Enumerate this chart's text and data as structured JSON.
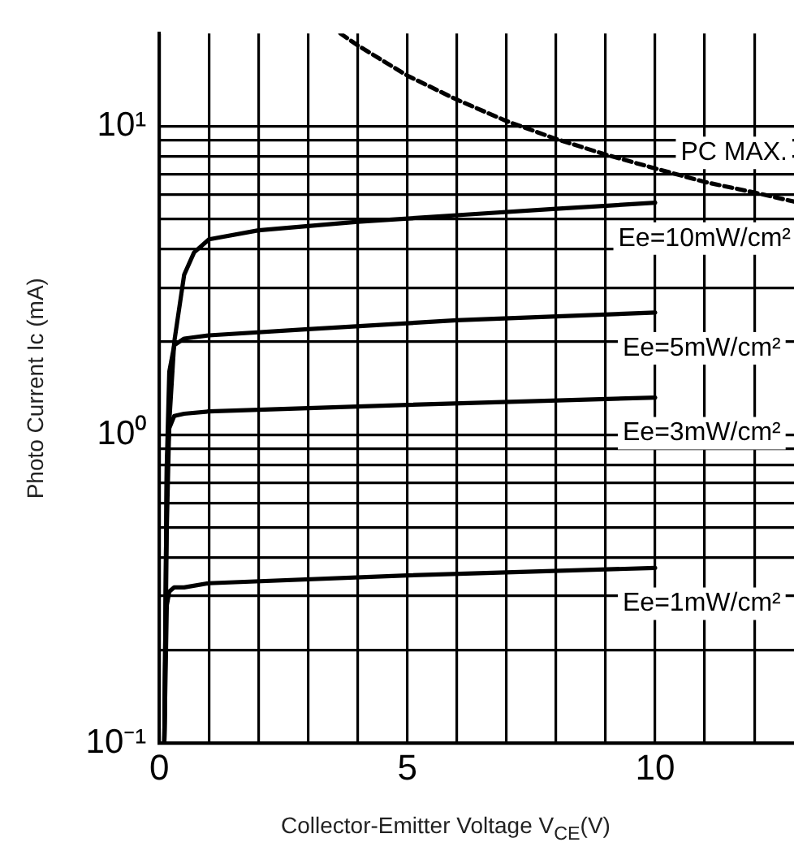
{
  "chart_data": {
    "type": "line",
    "xlabel": "Collector-Emitter Voltage V$_{CE}$(V)",
    "ylabel": "Photo Current Ic (mA)",
    "log": "y",
    "grid": true,
    "legend": false,
    "marker": "none",
    "xlim": [
      0,
      12.8
    ],
    "xticks": [
      0,
      {
        "value": 1,
        "label": null
      },
      {
        "value": 2,
        "label": null
      },
      {
        "value": 3,
        "label": null
      },
      {
        "value": 4,
        "label": null
      },
      5,
      {
        "value": 6,
        "label": null
      },
      {
        "value": 7,
        "label": null
      },
      {
        "value": 8,
        "label": null
      },
      {
        "value": 9,
        "label": null
      },
      10,
      {
        "value": 11,
        "label": null
      },
      {
        "value": 12,
        "label": null
      }
    ],
    "ylim": [
      0.1,
      20
    ],
    "yticks": [
      {
        "value": 0.1,
        "label": "10⁻¹"
      },
      {
        "value": 0.2,
        "label": null
      },
      {
        "value": 0.3,
        "label": null
      },
      {
        "value": 0.4,
        "label": null
      },
      {
        "value": 0.5,
        "label": null
      },
      {
        "value": 0.6,
        "label": null
      },
      {
        "value": 0.7,
        "label": null
      },
      {
        "value": 0.8,
        "label": null
      },
      {
        "value": 0.9,
        "label": null
      },
      {
        "value": 1,
        "label": "10⁰"
      },
      {
        "value": 2,
        "label": null
      },
      {
        "value": 3,
        "label": null
      },
      {
        "value": 4,
        "label": null
      },
      {
        "value": 5,
        "label": null
      },
      {
        "value": 6,
        "label": null
      },
      {
        "value": 7,
        "label": null
      },
      {
        "value": 8,
        "label": null
      },
      {
        "value": 9,
        "label": null
      },
      {
        "value": 10,
        "label": "10¹"
      }
    ],
    "series": [
      {
        "name": "PC MAX.",
        "color": "#000000",
        "line_style": "dashed",
        "x": [
          3.65,
          4,
          5,
          6,
          7,
          8,
          9,
          10,
          11,
          12,
          12.8
        ],
        "values": [
          20,
          18.3,
          14.6,
          12.2,
          10.4,
          9.1,
          8.1,
          7.3,
          6.6,
          6.1,
          5.7
        ]
      },
      {
        "name": "Ee=10mW/cm²",
        "color": "#000000",
        "line_style": "solid",
        "x": [
          0.1,
          0.15,
          0.2,
          0.3,
          0.5,
          0.7,
          1,
          2,
          4,
          6,
          8,
          10
        ],
        "values": [
          0.1,
          0.5,
          1.1,
          2.0,
          3.3,
          3.9,
          4.3,
          4.6,
          4.9,
          5.15,
          5.4,
          5.65
        ]
      },
      {
        "name": "Ee=5mW/cm²",
        "color": "#000000",
        "line_style": "solid",
        "x": [
          0.1,
          0.15,
          0.2,
          0.3,
          0.5,
          1,
          3,
          6,
          10
        ],
        "values": [
          0.1,
          0.8,
          1.6,
          1.95,
          2.05,
          2.1,
          2.2,
          2.35,
          2.49
        ]
      },
      {
        "name": "Ee=3mW/cm²",
        "color": "#000000",
        "line_style": "solid",
        "x": [
          0.1,
          0.15,
          0.2,
          0.3,
          0.5,
          1,
          5,
          10
        ],
        "values": [
          0.1,
          0.8,
          1.05,
          1.15,
          1.17,
          1.19,
          1.25,
          1.32
        ]
      },
      {
        "name": "Ee=1mW/cm²",
        "color": "#000000",
        "line_style": "solid",
        "x": [
          0.1,
          0.15,
          0.2,
          0.3,
          0.5,
          1,
          5,
          10
        ],
        "values": [
          0.1,
          0.28,
          0.31,
          0.32,
          0.32,
          0.33,
          0.35,
          0.37
        ]
      }
    ]
  }
}
